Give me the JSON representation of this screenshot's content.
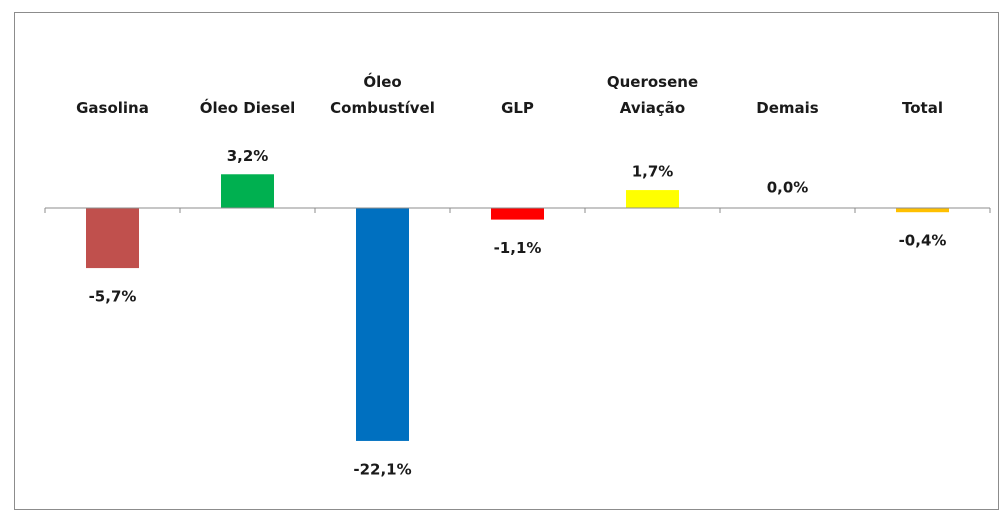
{
  "chart_data": {
    "type": "bar",
    "categories": [
      "Gasolina",
      "Óleo Diesel",
      "Óleo\nCombustível",
      "GLP",
      "Querosene\nAviação",
      "Demais",
      "Total"
    ],
    "values": [
      -5.7,
      3.2,
      -22.1,
      -1.1,
      1.7,
      0.0,
      -0.4
    ],
    "value_labels": [
      "-5,7%",
      "3,2%",
      "-22,1%",
      "-1,1%",
      "1,7%",
      "0,0%",
      "-0,4%"
    ],
    "colors": [
      "#c0504d",
      "#00b050",
      "#0070c0",
      "#ff0000",
      "#ffff00",
      "#7f7f7f",
      "#ffc000"
    ],
    "ylim": [
      -25,
      10
    ]
  }
}
